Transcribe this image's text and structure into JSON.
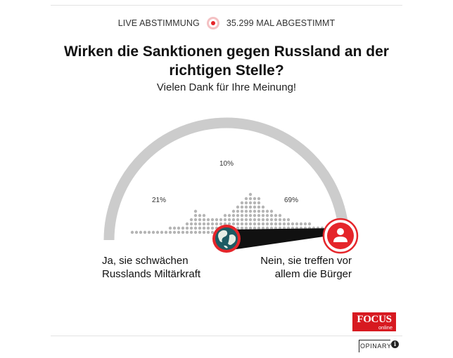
{
  "header": {
    "live_label": "LIVE ABSTIMMUNG",
    "votes_label": "35.299 MAL ABGESTIMMT"
  },
  "poll": {
    "question": "Wirken die Sanktionen gegen Russland an der richtigen Stelle?",
    "thanks": "Vielen Dank für Ihre Meinung!",
    "results": [
      {
        "percent": 21,
        "label": "21%"
      },
      {
        "percent": 10,
        "label": "10%"
      },
      {
        "percent": 69,
        "label": "69%"
      }
    ],
    "answer_left_line1": "Ja, sie schwächen",
    "answer_left_line2": "Russlands Miltärkraft",
    "answer_right_line1": "Nein, sie treffen vor",
    "answer_right_line2": "allem die Bürger",
    "left_icon": "globe-icon",
    "right_icon": "person-icon"
  },
  "branding": {
    "publisher_logo_line1": "FOCUS",
    "publisher_logo_line2": "online",
    "provider": "OPINARY",
    "info_icon": "i"
  },
  "colors": {
    "accent": "#e5252a",
    "arc": "#cccccc",
    "dots": "#b5b5b5",
    "pointer": "#111111"
  }
}
